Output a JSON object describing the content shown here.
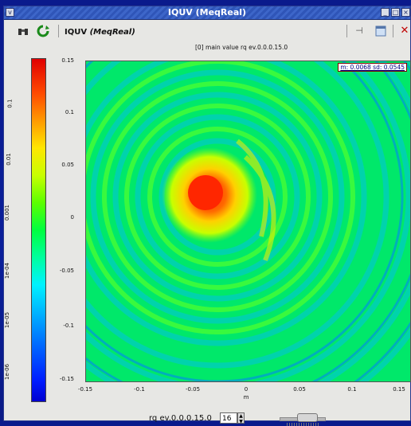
{
  "window": {
    "title": "IQUV (MeqReal)"
  },
  "toolbar": {
    "app_name": "IQUV",
    "app_subtitle": "(MeqReal)"
  },
  "plot": {
    "caption": "[0] main value  rq ev.0.0.0.15.0",
    "stats": "m: 0.0068 sd: 0.0545",
    "x_unit_label": "m",
    "x_ticks": [
      "-0.15",
      "-0.1",
      "-0.05",
      "0",
      "0.05",
      "0.1",
      "0.15"
    ],
    "y_ticks": [
      "0.15",
      "0.1",
      "0.05",
      "0",
      "-0.05",
      "-0.1",
      "-0.15"
    ],
    "colorbar_ticks": [
      "0.1",
      "0.01",
      "0.001",
      "1e-04",
      "1e-05",
      "1e-06"
    ]
  },
  "controls": {
    "label": "rq ev.0.0.0.15.0",
    "spin_value": "16"
  },
  "colors": {
    "titlebar": "#2f55b8",
    "background": "#e7e7e4",
    "desktop": "#0a1a8c"
  }
}
